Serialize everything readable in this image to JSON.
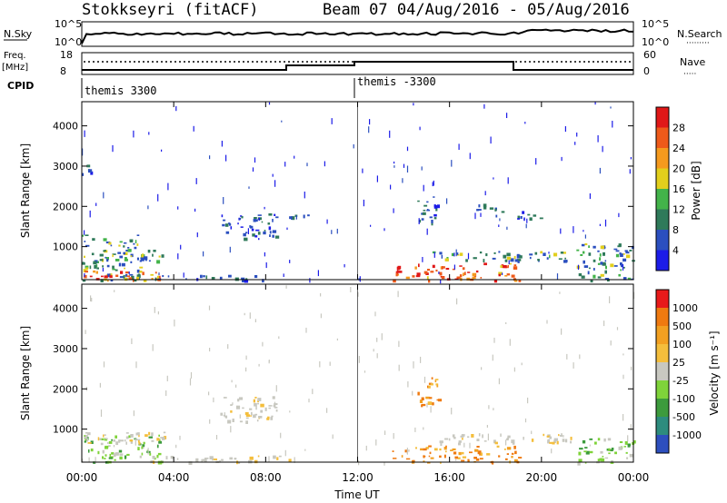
{
  "title_left": "Stokkseyri (fitACF)",
  "title_right": "Beam 07  04/Aug/2016 - 05/Aug/2016",
  "noise_panel": {
    "left_label": "N.Sky",
    "left_ticks": [
      "10^5",
      "10^0"
    ],
    "right_ticks": [
      "10^5",
      "10^0"
    ],
    "right_label": "N.Search",
    "right_label_line": "·········"
  },
  "freq_panel": {
    "left_label_top": "Freq.",
    "left_label_unit": "[MHz]",
    "left_ticks": [
      "18",
      "8"
    ],
    "right_ticks": [
      "60",
      "0"
    ],
    "right_label": "Nave",
    "right_label_line": "·····"
  },
  "cpid": {
    "label": "CPID",
    "segments": [
      "themis 3300",
      "themis -3300"
    ]
  },
  "time_axis": {
    "ticks": [
      "00:00",
      "04:00",
      "08:00",
      "12:00",
      "16:00",
      "20:00",
      "00:00"
    ],
    "label": "Time UT"
  },
  "chart_data": [
    {
      "type": "heatmap",
      "panel": "power",
      "ylabel": "Slant Range [km]",
      "yticks": [
        1000,
        2000,
        3000,
        4000
      ],
      "ylim": [
        180,
        4600
      ],
      "xlim_hours": [
        0,
        24
      ],
      "colorbar": {
        "label": "Power [dB]",
        "ticks": [
          "4",
          "8",
          "12",
          "16",
          "20",
          "24",
          "28"
        ],
        "colors": [
          "#1c1ce8",
          "#2b4fbf",
          "#2f7a5a",
          "#43b34a",
          "#e2cf1c",
          "#f59a1e",
          "#ee5a1a",
          "#e01818"
        ]
      },
      "features": [
        {
          "t0": 0.0,
          "t1": 0.4,
          "r0": 2800,
          "r1": 3150,
          "level": "low"
        },
        {
          "t0": 0.0,
          "t1": 2.6,
          "r0": 180,
          "r1": 1300,
          "level": "mid"
        },
        {
          "t0": 0.0,
          "t1": 3.8,
          "r0": 180,
          "r1": 450,
          "level": "high"
        },
        {
          "t0": 1.0,
          "t1": 3.5,
          "r0": 650,
          "r1": 950,
          "level": "mid"
        },
        {
          "t0": 3.0,
          "t1": 8.5,
          "r0": 180,
          "r1": 300,
          "level": "low"
        },
        {
          "t0": 6.0,
          "t1": 8.5,
          "r0": 1200,
          "r1": 1850,
          "level": "low"
        },
        {
          "t0": 9.0,
          "t1": 10.0,
          "r0": 1600,
          "r1": 1800,
          "level": "low"
        },
        {
          "t0": 13.5,
          "t1": 19.0,
          "r0": 180,
          "r1": 600,
          "level": "high"
        },
        {
          "t0": 15.2,
          "t1": 19.0,
          "r0": 650,
          "r1": 900,
          "level": "mid"
        },
        {
          "t0": 14.5,
          "t1": 15.5,
          "r0": 1600,
          "r1": 2300,
          "level": "low"
        },
        {
          "t0": 17.0,
          "t1": 18.5,
          "r0": 1900,
          "r1": 2100,
          "level": "low"
        },
        {
          "t0": 18.0,
          "t1": 20.0,
          "r0": 1700,
          "r1": 1900,
          "level": "low"
        },
        {
          "t0": 18.5,
          "t1": 21.5,
          "r0": 650,
          "r1": 900,
          "level": "mid"
        },
        {
          "t0": 21.5,
          "t1": 24.0,
          "r0": 180,
          "r1": 1100,
          "level": "mid"
        }
      ]
    },
    {
      "type": "heatmap",
      "panel": "velocity",
      "ylabel": "Slant Range [km]",
      "yticks": [
        1000,
        2000,
        3000,
        4000
      ],
      "ylim": [
        180,
        4600
      ],
      "xlim_hours": [
        0,
        24
      ],
      "colorbar": {
        "label": "Velocity [m s⁻¹]",
        "ticks": [
          "1000",
          "500",
          "100",
          "25",
          "-25",
          "-100",
          "-500",
          "-1000"
        ],
        "colors": [
          "#2d4fbe",
          "#2d8c7e",
          "#3d9b3d",
          "#7fd33a",
          "#c8c8c0",
          "#f4be3c",
          "#f2a021",
          "#ef7a10",
          "#e81a1a"
        ]
      },
      "features": [
        {
          "t0": 0.0,
          "t1": 3.5,
          "r0": 180,
          "r1": 900,
          "level": "green"
        },
        {
          "t0": 0.0,
          "t1": 4.0,
          "r0": 650,
          "r1": 950,
          "level": "gray"
        },
        {
          "t0": 3.0,
          "t1": 9.0,
          "r0": 180,
          "r1": 350,
          "level": "gray"
        },
        {
          "t0": 6.0,
          "t1": 8.5,
          "r0": 1200,
          "r1": 1850,
          "level": "gray"
        },
        {
          "t0": 13.5,
          "t1": 19.0,
          "r0": 180,
          "r1": 600,
          "level": "orange"
        },
        {
          "t0": 14.5,
          "t1": 15.5,
          "r0": 1600,
          "r1": 2300,
          "level": "orange"
        },
        {
          "t0": 15.5,
          "t1": 19.0,
          "r0": 650,
          "r1": 900,
          "level": "gray"
        },
        {
          "t0": 18.5,
          "t1": 21.5,
          "r0": 650,
          "r1": 900,
          "level": "gray"
        },
        {
          "t0": 21.5,
          "t1": 24.0,
          "r0": 180,
          "r1": 800,
          "level": "green"
        }
      ]
    }
  ]
}
